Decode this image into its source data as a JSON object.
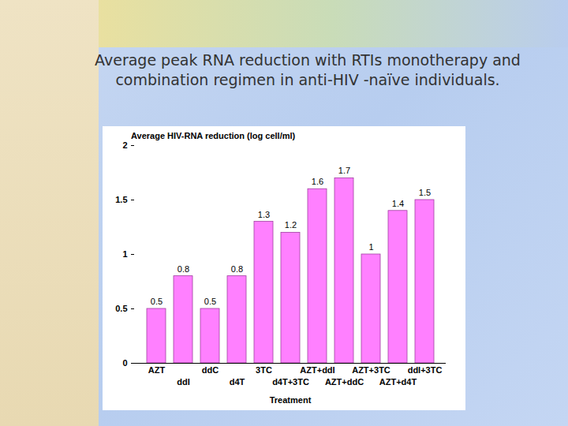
{
  "chart_data": {
    "type": "bar",
    "title": "Average peak RNA reduction with RTIs monotherapy and combination regimen in anti-HIV -naïve individuals.",
    "subtitle": "Average HIV-RNA reduction (log cell/ml)",
    "x_label": "Treatment",
    "categories": [
      "AZT",
      "ddI",
      "ddC",
      "d4T",
      "3TC",
      "d4T+3TC",
      "AZT+ddI",
      "AZT+ddC",
      "AZT+3TC",
      "AZT+d4T",
      "ddI+3TC"
    ],
    "values": [
      0.5,
      0.8,
      0.5,
      0.8,
      1.3,
      1.2,
      1.6,
      1.7,
      1,
      1.4,
      1.5
    ],
    "color": "#ff80ff",
    "ylim": [
      0,
      2
    ],
    "yticks": [
      0,
      0.5,
      1,
      1.5,
      2
    ],
    "grid": false,
    "data_labels": true
  }
}
